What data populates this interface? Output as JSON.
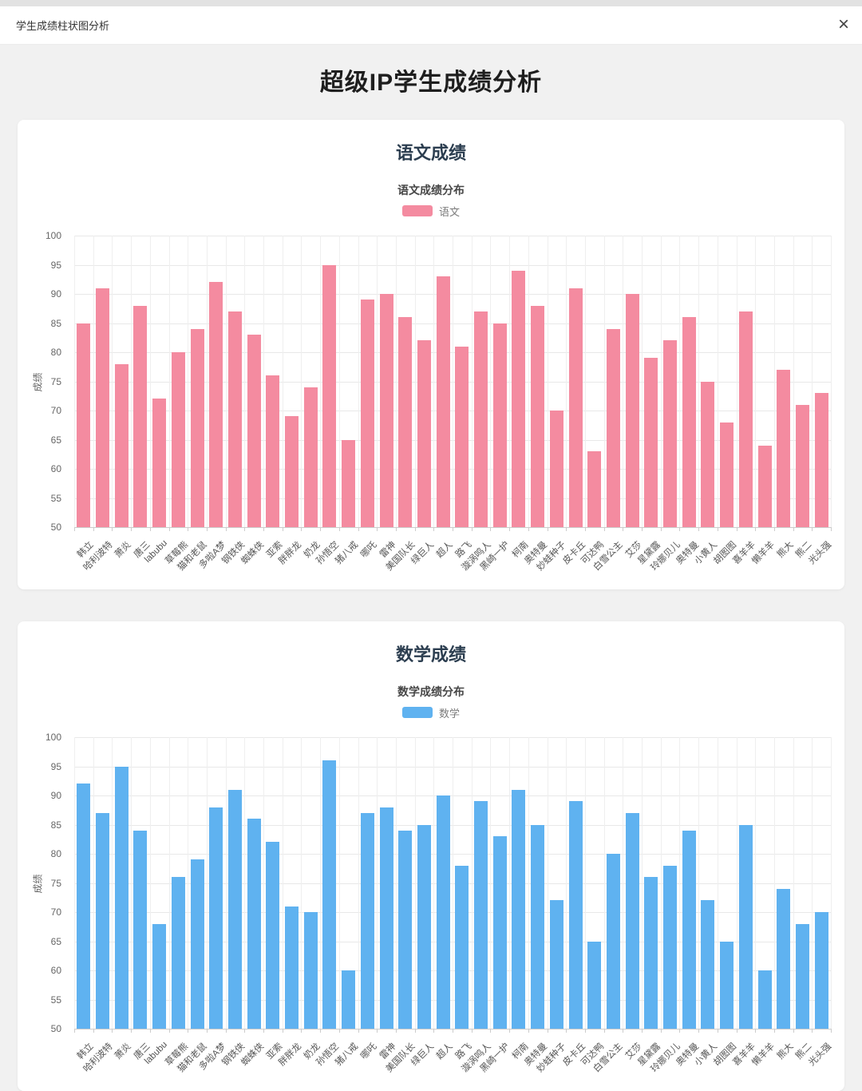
{
  "window": {
    "title": "学生成绩柱状图分析",
    "close_icon": "×"
  },
  "page": {
    "title": "超级IP学生成绩分析"
  },
  "chart_data": [
    {
      "type": "bar",
      "section_title": "语文成绩",
      "title": "语文成绩分布",
      "legend": [
        "语文"
      ],
      "legend_position": "top",
      "bar_color": "#f48ba0",
      "grid": true,
      "xlabel": "",
      "ylabel": "成绩",
      "ylim": [
        50,
        100
      ],
      "ytick_step": 5,
      "categories": [
        "韩立",
        "哈利波特",
        "萧炎",
        "唐三",
        "labubu",
        "草莓熊",
        "猫和老鼠",
        "多啦A梦",
        "钢铁侠",
        "蜘蛛侠",
        "亚索",
        "胖胖龙",
        "奶龙",
        "孙悟空",
        "猪八戒",
        "哪吒",
        "雷神",
        "美国队长",
        "绿巨人",
        "超人",
        "路飞",
        "漩涡鸣人",
        "黑崎一护",
        "柯南",
        "奥特曼",
        "妙蛙种子",
        "皮卡丘",
        "可达鸭",
        "白雪公主",
        "艾莎",
        "星黛露",
        "玲娜贝儿",
        "奥特曼",
        "小黄人",
        "胡图图",
        "喜羊羊",
        "懒羊羊",
        "熊大",
        "熊二",
        "光头强"
      ],
      "values": [
        85,
        91,
        78,
        88,
        72,
        80,
        84,
        92,
        87,
        83,
        76,
        69,
        74,
        95,
        65,
        89,
        90,
        86,
        82,
        93,
        81,
        87,
        85,
        94,
        88,
        70,
        91,
        63,
        84,
        90,
        79,
        82,
        86,
        75,
        68,
        87,
        64,
        77,
        71,
        73
      ]
    },
    {
      "type": "bar",
      "section_title": "数学成绩",
      "title": "数学成绩分布",
      "legend": [
        "数学"
      ],
      "legend_position": "top",
      "bar_color": "#5fb2f0",
      "grid": true,
      "xlabel": "",
      "ylabel": "成绩",
      "ylim": [
        50,
        100
      ],
      "ytick_step": 5,
      "categories": [
        "韩立",
        "哈利波特",
        "萧炎",
        "唐三",
        "labubu",
        "草莓熊",
        "猫和老鼠",
        "多啦A梦",
        "钢铁侠",
        "蜘蛛侠",
        "亚索",
        "胖胖龙",
        "奶龙",
        "孙悟空",
        "猪八戒",
        "哪吒",
        "雷神",
        "美国队长",
        "绿巨人",
        "超人",
        "路飞",
        "漩涡鸣人",
        "黑崎一护",
        "柯南",
        "奥特曼",
        "妙蛙种子",
        "皮卡丘",
        "可达鸭",
        "白雪公主",
        "艾莎",
        "星黛露",
        "玲娜贝儿",
        "奥特曼",
        "小黄人",
        "胡图图",
        "喜羊羊",
        "懒羊羊",
        "熊大",
        "熊二",
        "光头强"
      ],
      "values": [
        92,
        87,
        95,
        84,
        68,
        76,
        79,
        88,
        91,
        86,
        82,
        71,
        70,
        96,
        60,
        87,
        88,
        84,
        85,
        90,
        78,
        89,
        83,
        91,
        85,
        72,
        89,
        65,
        80,
        87,
        76,
        78,
        84,
        72,
        65,
        85,
        60,
        74,
        68,
        70
      ]
    }
  ]
}
